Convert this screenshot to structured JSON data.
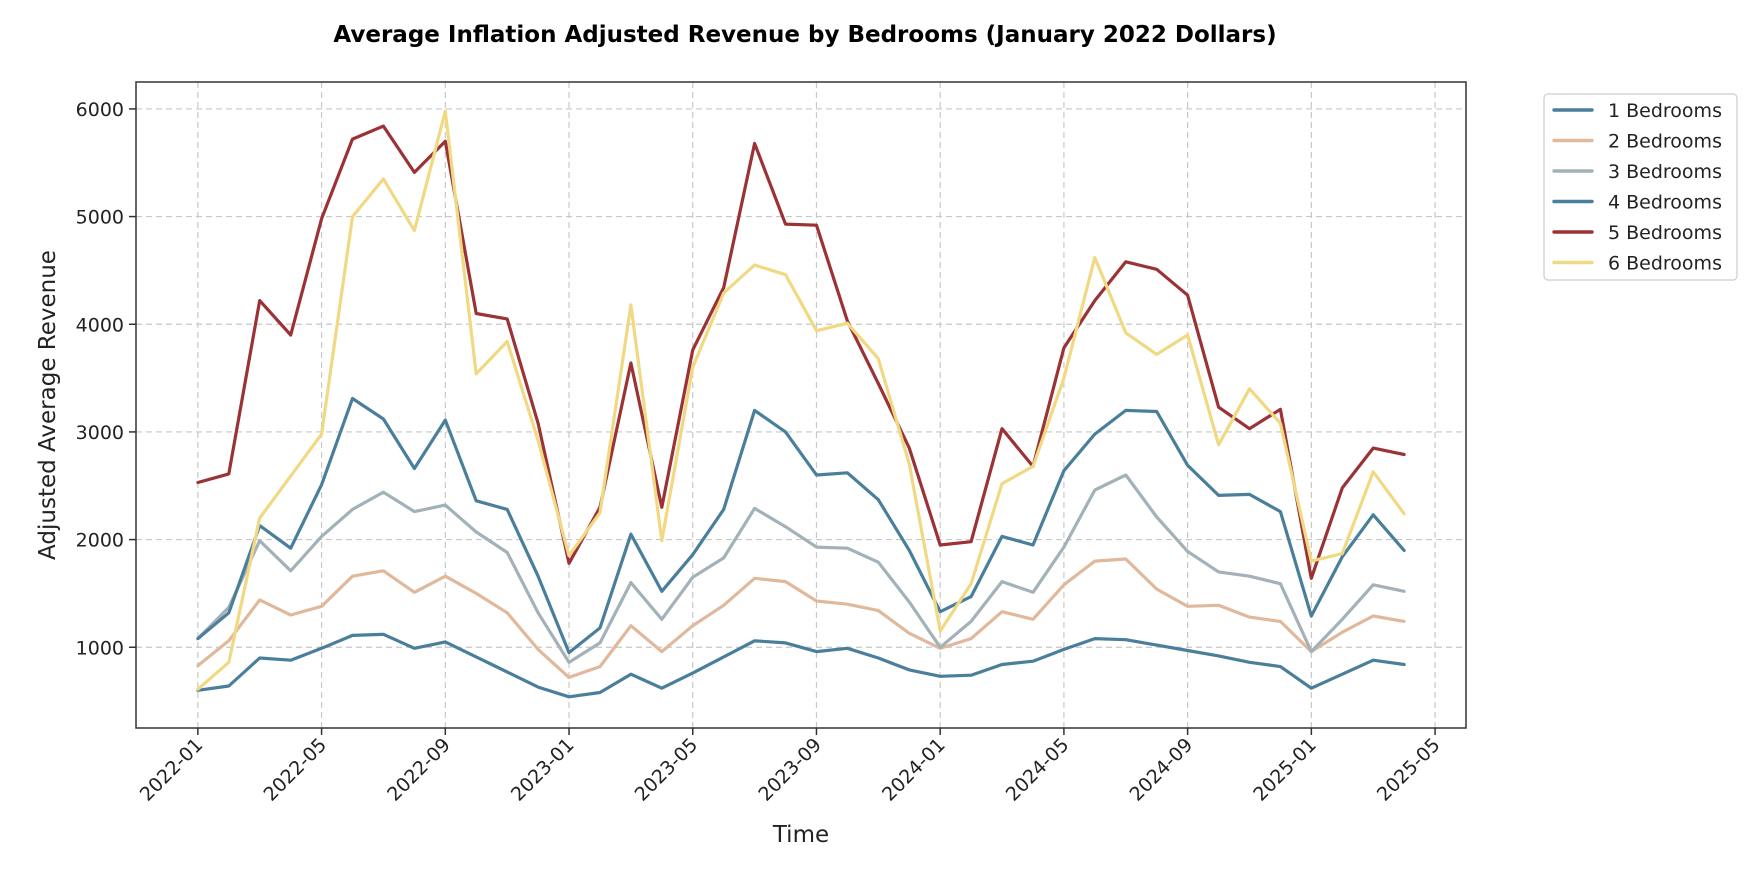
{
  "chart_data": {
    "type": "line",
    "title": "Average Inflation Adjusted Revenue by Bedrooms (January 2022 Dollars)",
    "xlabel": "Time",
    "ylabel": "Adjusted Average Revenue",
    "ylim": [
      250,
      6250
    ],
    "y_ticks": [
      1000,
      2000,
      3000,
      4000,
      5000,
      6000
    ],
    "y_tick_labels": [
      "1000",
      "2000",
      "3000",
      "4000",
      "5000",
      "6000"
    ],
    "x_tick_months": [
      0,
      4,
      8,
      12,
      16,
      20,
      24,
      28,
      32,
      36,
      40
    ],
    "x_tick_labels": [
      "2022-01",
      "2022-05",
      "2022-09",
      "2023-01",
      "2023-05",
      "2023-09",
      "2024-01",
      "2024-05",
      "2024-09",
      "2025-01",
      "2025-05"
    ],
    "x_range_months": [
      -2,
      41
    ],
    "grid": true,
    "legend_position": "outside-top-right",
    "x": [
      "2022-01",
      "2022-02",
      "2022-03",
      "2022-04",
      "2022-05",
      "2022-06",
      "2022-07",
      "2022-08",
      "2022-09",
      "2022-10",
      "2022-11",
      "2022-12",
      "2023-01",
      "2023-02",
      "2023-03",
      "2023-04",
      "2023-05",
      "2023-06",
      "2023-07",
      "2023-08",
      "2023-09",
      "2023-10",
      "2023-11",
      "2023-12",
      "2024-01",
      "2024-02",
      "2024-03",
      "2024-04",
      "2024-05",
      "2024-06",
      "2024-07",
      "2024-08",
      "2024-09",
      "2024-10",
      "2024-11",
      "2024-12",
      "2025-01",
      "2025-02",
      "2025-03",
      "2025-04"
    ],
    "series": [
      {
        "name": "1 Bedrooms",
        "color": "#4a7f9b",
        "values": [
          600,
          640,
          900,
          880,
          990,
          1110,
          1120,
          990,
          1050,
          910,
          770,
          630,
          540,
          580,
          750,
          620,
          760,
          910,
          1060,
          1040,
          960,
          990,
          900,
          790,
          730,
          740,
          840,
          870,
          980,
          1080,
          1070,
          1020,
          970,
          920,
          860,
          820,
          620,
          750,
          880,
          840
        ]
      },
      {
        "name": "2 Bedrooms",
        "color": "#e0b99c",
        "values": [
          830,
          1060,
          1440,
          1300,
          1380,
          1660,
          1710,
          1510,
          1660,
          1500,
          1320,
          980,
          720,
          820,
          1200,
          960,
          1200,
          1390,
          1640,
          1610,
          1430,
          1400,
          1340,
          1130,
          990,
          1080,
          1330,
          1260,
          1580,
          1800,
          1820,
          1540,
          1380,
          1390,
          1280,
          1240,
          960,
          1140,
          1290,
          1240
        ]
      },
      {
        "name": "3 Bedrooms",
        "color": "#a3b1b8",
        "values": [
          1080,
          1370,
          1990,
          1710,
          2030,
          2280,
          2440,
          2260,
          2320,
          2070,
          1880,
          1320,
          860,
          1040,
          1600,
          1260,
          1650,
          1830,
          2290,
          2120,
          1930,
          1920,
          1790,
          1420,
          1000,
          1240,
          1610,
          1510,
          1930,
          2460,
          2600,
          2210,
          1890,
          1700,
          1660,
          1590,
          960,
          1260,
          1580,
          1520
        ]
      },
      {
        "name": "4 Bedrooms",
        "color": "#4a7f9b",
        "values": [
          1080,
          1320,
          2130,
          1920,
          2510,
          3310,
          3120,
          2660,
          3110,
          2360,
          2280,
          1660,
          950,
          1180,
          2050,
          1520,
          1860,
          2280,
          3200,
          3000,
          2600,
          2620,
          2370,
          1900,
          1330,
          1470,
          2030,
          1950,
          2640,
          2980,
          3200,
          3190,
          2690,
          2410,
          2420,
          2260,
          1290,
          1840,
          2230,
          1900
        ]
      },
      {
        "name": "5 Bedrooms",
        "color": "#9b3236",
        "values": [
          2530,
          2610,
          4220,
          3900,
          4980,
          5720,
          5840,
          5410,
          5700,
          4100,
          4050,
          3080,
          1780,
          2300,
          3640,
          2300,
          3760,
          4340,
          5680,
          4930,
          4920,
          4030,
          3450,
          2850,
          1950,
          1980,
          3030,
          2680,
          3780,
          4220,
          4580,
          4510,
          4270,
          3230,
          3030,
          3210,
          1640,
          2480,
          2850,
          2790
        ]
      },
      {
        "name": "6 Bedrooms",
        "color": "#f0d982",
        "values": [
          610,
          860,
          2200,
          2590,
          2980,
          5000,
          5350,
          4870,
          5980,
          3540,
          3840,
          2920,
          1850,
          2250,
          4180,
          1990,
          3600,
          4290,
          4550,
          4460,
          3940,
          4010,
          3680,
          2700,
          1150,
          1590,
          2520,
          2680,
          3500,
          4620,
          3920,
          3720,
          3900,
          2880,
          3400,
          3080,
          1800,
          1870,
          2630,
          2240
        ]
      }
    ]
  }
}
